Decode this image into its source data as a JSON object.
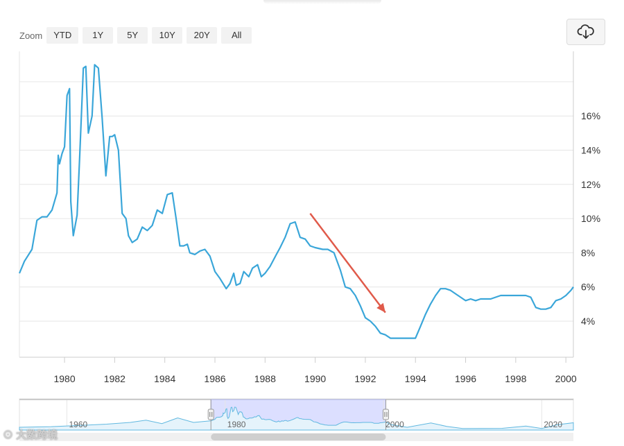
{
  "zoom": {
    "label": "Zoom",
    "buttons": [
      "YTD",
      "1Y",
      "5Y",
      "10Y",
      "20Y",
      "All"
    ]
  },
  "export_icon": "cloud-download-icon",
  "colors": {
    "line": "#3aa6d9",
    "arrow": "#e05a4a",
    "grid": "#e6e6e6",
    "navigator_fill": "#cdd2ff",
    "navigator_mask": "#d6d9ff"
  },
  "chart_data": {
    "type": "line",
    "title": "",
    "xlabel": "",
    "ylabel": "",
    "xlim": [
      1978.2,
      2000.3
    ],
    "ylim": [
      2,
      19
    ],
    "x_ticks": [
      "1980",
      "1982",
      "1984",
      "1986",
      "1988",
      "1990",
      "1992",
      "1994",
      "1996",
      "1998",
      "2000"
    ],
    "y_ticks": [
      "4%",
      "6%",
      "8%",
      "10%",
      "12%",
      "14%",
      "16%"
    ],
    "y_axis_side": "right",
    "grid": true,
    "series": [
      {
        "x": [
          1978.2,
          1978.4,
          1978.7,
          1978.9,
          1979.1,
          1979.3,
          1979.5,
          1979.7,
          1979.75,
          1979.8,
          1979.9,
          1980.0,
          1980.1,
          1980.2,
          1980.25,
          1980.35,
          1980.5,
          1980.6,
          1980.75,
          1980.85,
          1980.95,
          1981.1,
          1981.2,
          1981.35,
          1981.5,
          1981.65,
          1981.8,
          1981.9,
          1982.0,
          1982.15,
          1982.3,
          1982.45,
          1982.55,
          1982.7,
          1982.9,
          1983.1,
          1983.3,
          1983.5,
          1983.7,
          1983.9,
          1984.1,
          1984.3,
          1984.45,
          1984.6,
          1984.75,
          1984.9,
          1985.0,
          1985.2,
          1985.4,
          1985.6,
          1985.8,
          1986.0,
          1986.2,
          1986.45,
          1986.6,
          1986.75,
          1986.85,
          1987.0,
          1987.15,
          1987.35,
          1987.5,
          1987.7,
          1987.85,
          1988.0,
          1988.2,
          1988.45,
          1988.6,
          1988.8,
          1989.0,
          1989.2,
          1989.4,
          1989.6,
          1989.8,
          1990.0,
          1990.3,
          1990.5,
          1990.75,
          1991.0,
          1991.2,
          1991.4,
          1991.6,
          1991.8,
          1992.0,
          1992.2,
          1992.4,
          1992.6,
          1992.8,
          1993.0,
          1993.2,
          1993.4,
          1993.7,
          1994.0,
          1994.2,
          1994.4,
          1994.6,
          1994.8,
          1995.0,
          1995.2,
          1995.4,
          1995.6,
          1995.8,
          1996.0,
          1996.2,
          1996.4,
          1996.6,
          1996.8,
          1997.0,
          1997.2,
          1997.4,
          1997.6,
          1997.8,
          1998.0,
          1998.2,
          1998.4,
          1998.6,
          1998.8,
          1999.0,
          1999.2,
          1999.4,
          1999.6,
          1999.8,
          2000.0,
          2000.2,
          2000.3
        ],
        "values": [
          6.8,
          7.5,
          8.2,
          9.9,
          10.1,
          10.1,
          10.5,
          11.5,
          13.7,
          13.2,
          13.8,
          14.2,
          17.2,
          17.6,
          11.0,
          9.0,
          10.2,
          13.5,
          18.8,
          18.9,
          15.0,
          16.0,
          19.0,
          18.8,
          15.9,
          12.5,
          14.8,
          14.8,
          14.9,
          14.0,
          10.3,
          10.0,
          9.0,
          8.6,
          8.8,
          9.5,
          9.3,
          9.6,
          10.5,
          10.3,
          11.4,
          11.5,
          10.0,
          8.4,
          8.4,
          8.5,
          8.0,
          7.9,
          8.1,
          8.2,
          7.8,
          6.9,
          6.5,
          5.9,
          6.2,
          6.8,
          6.1,
          6.2,
          6.9,
          6.6,
          7.1,
          7.3,
          6.6,
          6.8,
          7.2,
          7.9,
          8.3,
          8.9,
          9.7,
          9.8,
          8.9,
          8.8,
          8.4,
          8.3,
          8.2,
          8.2,
          8.0,
          7.0,
          6.0,
          5.9,
          5.5,
          4.9,
          4.2,
          4.0,
          3.7,
          3.3,
          3.2,
          3.0,
          3.0,
          3.0,
          3.0,
          3.0,
          3.7,
          4.4,
          5.0,
          5.5,
          5.9,
          5.9,
          5.8,
          5.6,
          5.4,
          5.2,
          5.3,
          5.2,
          5.3,
          5.3,
          5.3,
          5.4,
          5.5,
          5.5,
          5.5,
          5.5,
          5.5,
          5.5,
          5.4,
          4.8,
          4.7,
          4.7,
          4.8,
          5.2,
          5.3,
          5.5,
          5.8,
          6.0
        ]
      }
    ],
    "annotation": {
      "type": "arrow",
      "from": [
        1989.8,
        10.3
      ],
      "to": [
        1992.8,
        4.5
      ]
    },
    "navigator": {
      "x_ticks": [
        "1960",
        "1980",
        "2000",
        "2020"
      ],
      "range": [
        1954,
        2024
      ],
      "selected": [
        1978.2,
        2000.3
      ]
    }
  }
}
